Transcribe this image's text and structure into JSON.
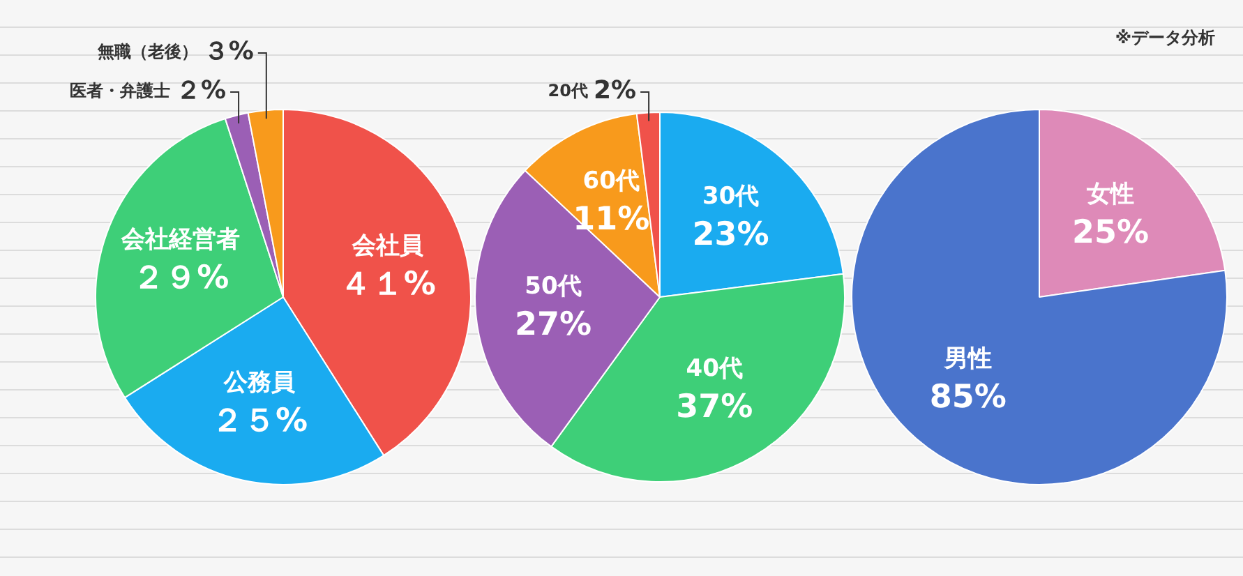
{
  "chart_data": [
    {
      "type": "pie",
      "categories": [
        "会社員",
        "公務員",
        "会社経営者",
        "医者・弁護士",
        "無職（老後）"
      ],
      "values": [
        41,
        25,
        29,
        2,
        3
      ],
      "colors": [
        "#f0524a",
        "#1aabf0",
        "#3ecf78",
        "#9b5fb5",
        "#f89a1c"
      ],
      "value_labels": [
        "４１%",
        "２５%",
        "２９%",
        "２%",
        "３%"
      ]
    },
    {
      "type": "pie",
      "categories": [
        "30代",
        "40代",
        "50代",
        "60代",
        "20代"
      ],
      "values": [
        23,
        37,
        27,
        11,
        2
      ],
      "colors": [
        "#1aabf0",
        "#3ecf78",
        "#9b5fb5",
        "#f89a1c",
        "#f0524a"
      ],
      "value_labels": [
        "23%",
        "37%",
        "27%",
        "11%",
        "2%"
      ]
    },
    {
      "type": "pie",
      "categories": [
        "女性",
        "男性"
      ],
      "values": [
        25,
        85
      ],
      "colors": [
        "#de8ab8",
        "#4a74cc"
      ],
      "value_labels": [
        "25%",
        "85%"
      ],
      "annotations": [
        "※データ分析"
      ]
    }
  ]
}
